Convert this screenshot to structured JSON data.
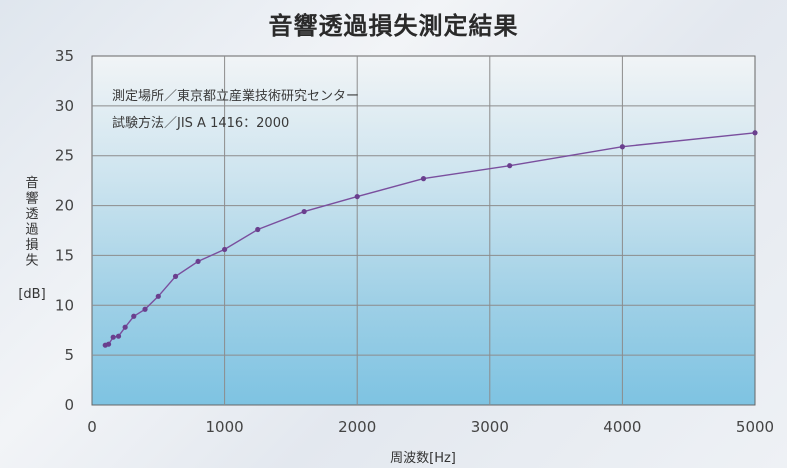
{
  "chart_data": {
    "type": "line",
    "title": "音響透過損失測定結果",
    "annotations": [
      "測定場所／東京都立産業技術研究センター",
      "試験方法／JIS A 1416：2000"
    ],
    "xlabel": "周波数[Hz]",
    "ylabel_chars": [
      "音",
      "響",
      "透",
      "過",
      "損",
      "失"
    ],
    "ylabel_unit": "[dB]",
    "xlim": [
      0,
      5000
    ],
    "ylim": [
      0,
      35
    ],
    "xticks": [
      0,
      1000,
      2000,
      3000,
      4000,
      5000
    ],
    "yticks": [
      0,
      5,
      10,
      15,
      20,
      25,
      30,
      35
    ],
    "grid": true,
    "colors": {
      "line": "#7a4f9e",
      "marker": "#6a3f8e",
      "grid": "#ffffff"
    },
    "series": [
      {
        "x": [
          100,
          125,
          160,
          200,
          250,
          315,
          400,
          500,
          630,
          800,
          1000,
          1250,
          1600,
          2000,
          2500,
          3150,
          4000,
          5000
        ],
        "y": [
          6.0,
          6.1,
          6.8,
          6.9,
          7.8,
          8.9,
          9.6,
          10.9,
          12.9,
          14.4,
          15.6,
          17.6,
          19.4,
          20.9,
          22.7,
          24.0,
          25.9,
          27.3
        ]
      }
    ]
  }
}
